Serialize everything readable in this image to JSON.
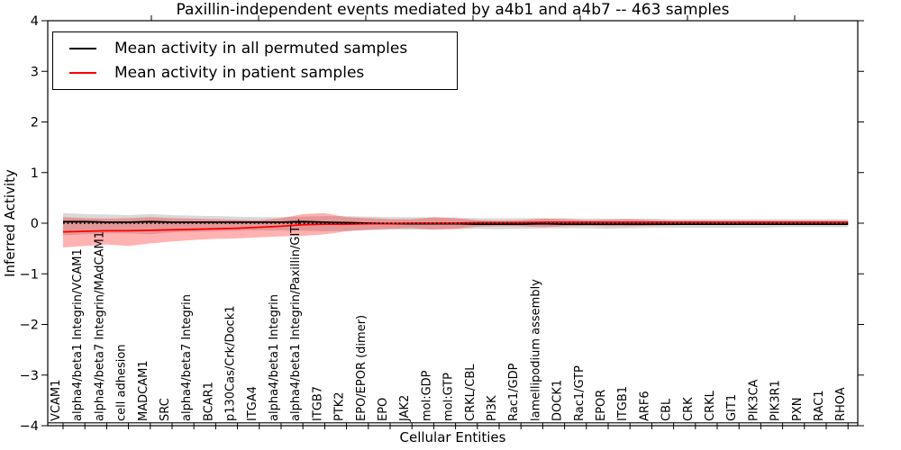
{
  "chart_data": {
    "type": "line",
    "title": "Paxillin-independent events mediated by a4b1 and a4b7 -- 463 samples",
    "xlabel": "Cellular Entities",
    "ylabel": "Inferred Activity",
    "ylim": [
      -4,
      4
    ],
    "yticks": [
      -4,
      -3,
      -2,
      -1,
      0,
      1,
      2,
      3,
      4
    ],
    "grid": false,
    "legend_position": "upper left",
    "categories": [
      "VCAM1",
      "alpha4/beta1 Integrin/VCAM1",
      "alpha4/beta7 Integrin/MAdCAM1",
      "cell adhesion",
      "MADCAM1",
      "SRC",
      "alpha4/beta7 Integrin",
      "BCAR1",
      "p130Cas/Crk/Dock1",
      "ITGA4",
      "alpha4/beta1 Integrin",
      "alpha4/beta1 Integrin/Paxillin/GIT1",
      "ITGB7",
      "PTK2",
      "EPO/EPOR (dimer)",
      "EPO",
      "JAK2",
      "mol:GDP",
      "mol:GTP",
      "CRKL/CBL",
      "PI3K",
      "Rac1/GDP",
      "lamellipodium assembly",
      "DOCK1",
      "Rac1/GTP",
      "EPOR",
      "ITGB1",
      "ARF6",
      "CBL",
      "CRK",
      "CRKL",
      "GIT1",
      "PIK3CA",
      "PIK3R1",
      "PXN",
      "RAC1",
      "RHOA"
    ],
    "series": [
      {
        "name": "permuted-mean",
        "label": "Mean activity in all permuted samples",
        "color": "#000000",
        "dash": "solid",
        "values": [
          0.03,
          0.03,
          0.02,
          0.02,
          0.03,
          0.02,
          0.02,
          0.02,
          0.02,
          0.02,
          0.02,
          0.03,
          0.02,
          0.01,
          0.0,
          -0.01,
          -0.01,
          -0.01,
          -0.01,
          -0.02,
          -0.02,
          -0.02,
          -0.01,
          -0.02,
          -0.02,
          -0.02,
          -0.02,
          -0.02,
          -0.02,
          -0.02,
          -0.02,
          -0.02,
          -0.02,
          -0.02,
          -0.02,
          -0.02,
          -0.02
        ]
      },
      {
        "name": "patient-mean",
        "label": "Mean activity in patient samples",
        "color": "#ff0000",
        "dash": "solid",
        "values": [
          -0.17,
          -0.16,
          -0.15,
          -0.15,
          -0.14,
          -0.13,
          -0.12,
          -0.11,
          -0.1,
          -0.08,
          -0.06,
          -0.03,
          -0.02,
          -0.02,
          -0.01,
          -0.01,
          0.0,
          0.0,
          0.0,
          0.01,
          0.01,
          0.01,
          0.02,
          0.02,
          0.02,
          0.02,
          0.02,
          0.02,
          0.02,
          0.02,
          0.02,
          0.02,
          0.02,
          0.02,
          0.02,
          0.02,
          0.02
        ]
      }
    ],
    "zero_reference": {
      "value": 0,
      "color": "#000000",
      "dash": "dotted"
    },
    "bands": [
      {
        "name": "permuted-std-band",
        "color": "#000000",
        "opacity": 0.15,
        "upper": [
          0.2,
          0.18,
          0.17,
          0.16,
          0.18,
          0.16,
          0.15,
          0.14,
          0.13,
          0.12,
          0.12,
          0.13,
          0.14,
          0.14,
          0.13,
          0.12,
          0.12,
          0.11,
          0.11,
          0.1,
          0.1,
          0.1,
          0.1,
          0.1,
          0.09,
          0.09,
          0.09,
          0.09,
          0.08,
          0.08,
          0.08,
          0.08,
          0.08,
          0.08,
          0.08,
          0.08,
          0.08
        ],
        "lower": [
          -0.24,
          -0.22,
          -0.2,
          -0.2,
          -0.22,
          -0.18,
          -0.17,
          -0.16,
          -0.15,
          -0.14,
          -0.14,
          -0.15,
          -0.16,
          -0.15,
          -0.14,
          -0.13,
          -0.13,
          -0.12,
          -0.12,
          -0.11,
          -0.12,
          -0.11,
          -0.1,
          -0.1,
          -0.1,
          -0.11,
          -0.1,
          -0.09,
          -0.09,
          -0.09,
          -0.09,
          -0.09,
          -0.09,
          -0.08,
          -0.08,
          -0.08,
          -0.08
        ]
      },
      {
        "name": "patient-std-band",
        "color": "#ff0000",
        "opacity": 0.3,
        "upper": [
          0.12,
          0.1,
          0.09,
          0.1,
          0.12,
          0.1,
          0.09,
          0.08,
          0.07,
          0.06,
          0.1,
          0.18,
          0.2,
          0.12,
          0.1,
          0.08,
          0.08,
          0.12,
          0.1,
          0.06,
          0.05,
          0.06,
          0.09,
          0.08,
          0.06,
          0.07,
          0.08,
          0.06,
          0.05,
          0.05,
          0.05,
          0.05,
          0.05,
          0.05,
          0.05,
          0.05,
          0.05
        ],
        "lower": [
          -0.48,
          -0.45,
          -0.42,
          -0.45,
          -0.4,
          -0.36,
          -0.33,
          -0.31,
          -0.3,
          -0.28,
          -0.26,
          -0.25,
          -0.22,
          -0.16,
          -0.13,
          -0.11,
          -0.1,
          -0.13,
          -0.11,
          -0.07,
          -0.06,
          -0.06,
          -0.08,
          -0.06,
          -0.05,
          -0.06,
          -0.06,
          -0.05,
          -0.04,
          -0.03,
          -0.03,
          -0.03,
          -0.03,
          -0.03,
          -0.03,
          -0.03,
          -0.03
        ]
      }
    ]
  }
}
